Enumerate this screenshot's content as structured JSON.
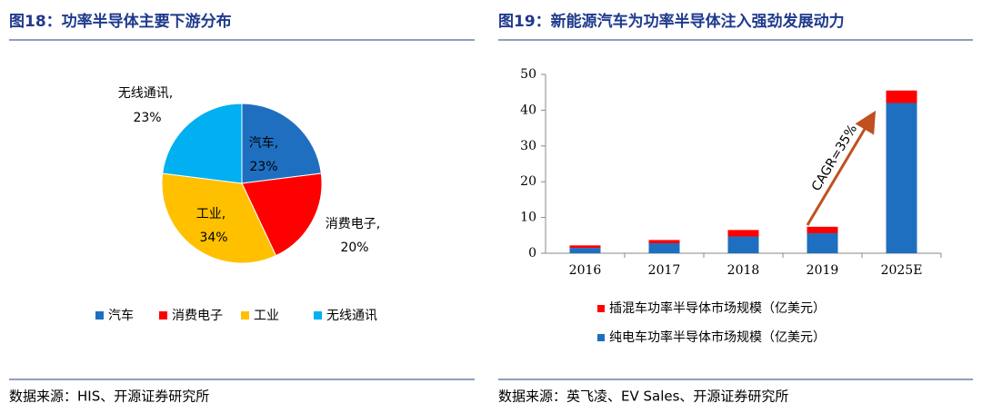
{
  "chart_data": [
    {
      "type": "pie",
      "title": "图18：功率半导体主要下游分布",
      "categories": [
        "汽车",
        "消费电子",
        "工业",
        "无线通讯"
      ],
      "slice_labels": [
        "汽车,",
        "消费电子,",
        "工业,",
        "无线通讯,"
      ],
      "values": [
        23,
        20,
        34,
        23
      ],
      "value_labels": [
        "23%",
        "20%",
        "34%",
        "23%"
      ],
      "colors": [
        "#1f6fc0",
        "#ff0000",
        "#ffc000",
        "#00b0f0"
      ],
      "legend": "bottom",
      "source": "数据来源：HIS、开源证券研究所"
    },
    {
      "type": "bar",
      "stacked": true,
      "title": "图19：新能源汽车为功率半导体注入强劲发展动力",
      "categories": [
        "2016",
        "2017",
        "2018",
        "2019",
        "2025E"
      ],
      "series": [
        {
          "name": "纯电车功率半导体市场规模（亿美元）",
          "color": "#1f6fc0",
          "values": [
            1.5,
            2.8,
            4.7,
            5.6,
            42
          ]
        },
        {
          "name": "插混车功率半导体市场规模（亿美元）",
          "color": "#ff0000",
          "values": [
            0.7,
            0.9,
            1.8,
            1.8,
            3.5
          ]
        }
      ],
      "ylim": [
        0,
        50
      ],
      "yticks": [
        0,
        10,
        20,
        30,
        40,
        50
      ],
      "grid": false,
      "annotation": "CAGR=35%",
      "legend": "bottom",
      "source": "数据来源：英飞凌、EV Sales、开源证券研究所"
    }
  ]
}
